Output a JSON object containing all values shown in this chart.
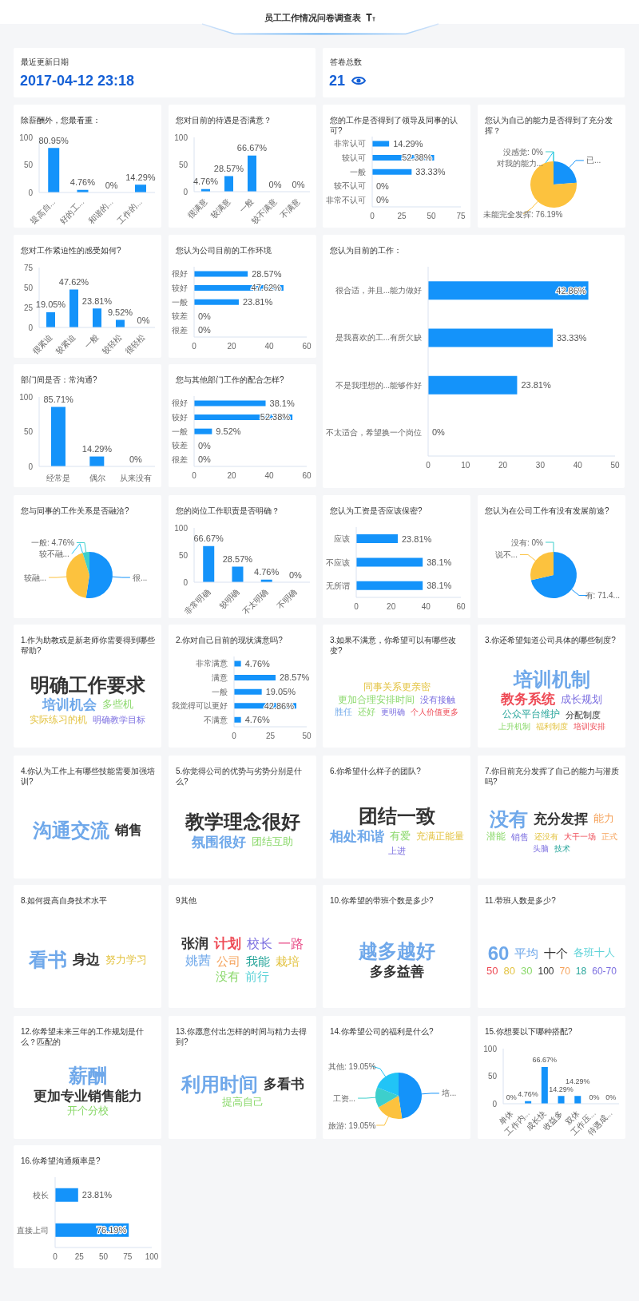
{
  "chart_data": [
    {
      "type": "other",
      "title": "员工工作情况问卷调查表"
    },
    {
      "type": "other",
      "title": "最近更新日期",
      "annotations": [
        "2017-04-12 23:18"
      ]
    },
    {
      "type": "other",
      "title": "答卷总数",
      "annotations": [
        "21"
      ]
    },
    {
      "type": "bar",
      "title": "除薪酬外，您最看重：",
      "categories": [
        "提高自...",
        "好的工...",
        "和谐的...",
        "工作的..."
      ],
      "values": [
        80.95,
        4.76,
        0,
        14.29
      ],
      "value_labels": [
        "80.95%",
        "4.76%",
        "0%",
        "14.29%"
      ],
      "color": "#1493fa",
      "ylim": [
        0,
        100
      ],
      "yticks": [
        0,
        50,
        100
      ]
    },
    {
      "type": "bar",
      "title": "您对目前的待遇是否满意？",
      "categories": [
        "很满意",
        "较满意",
        "一般",
        "较不满意",
        "不满意"
      ],
      "values": [
        4.76,
        28.57,
        66.67,
        0,
        0
      ],
      "value_labels": [
        "4.76%",
        "28.57%",
        "66.67%",
        "0%",
        "0%"
      ],
      "color": "#1493fa",
      "ylim": [
        0,
        100
      ],
      "yticks": [
        0,
        50,
        100
      ]
    },
    {
      "type": "bar",
      "orientation": "horizontal",
      "title": "您的工作是否得到了领导及同事的认可?",
      "categories": [
        "非常认可",
        "较认可",
        "一般",
        "较不认可",
        "非常不认可"
      ],
      "values": [
        14.29,
        52.38,
        33.33,
        0,
        0
      ],
      "value_labels": [
        "14.29%",
        "52.38%",
        "33.33%",
        "0%",
        "0%"
      ],
      "color": "#1493fa",
      "xlim": [
        0,
        75
      ],
      "xticks": [
        0,
        25,
        50,
        75
      ]
    },
    {
      "type": "pie",
      "title": "您认为自己的能力是否得到了充分发挥？",
      "categories": [
        "已...",
        "未能完全发挥",
        "对我的能力...",
        "没感觉"
      ],
      "values": [
        23.81,
        76.19,
        0,
        0
      ],
      "value_labels": [
        null,
        "76.19%",
        null,
        "0%"
      ],
      "colors": [
        "#1493fa",
        "#fcc23e",
        "#21c4f6",
        "#3dcfcc"
      ]
    },
    {
      "type": "bar",
      "title": "您对工作紧迫性的感受如何?",
      "categories": [
        "很紧迫",
        "较紧迫",
        "一般",
        "较轻松",
        "很轻松"
      ],
      "values": [
        19.05,
        47.62,
        23.81,
        9.52,
        0
      ],
      "value_labels": [
        "19.05%",
        "47.62%",
        "23.81%",
        "9.52%",
        "0%"
      ],
      "color": "#1493fa",
      "ylim": [
        0,
        75
      ],
      "yticks": [
        0,
        25,
        50,
        75
      ]
    },
    {
      "type": "bar",
      "orientation": "horizontal",
      "title": "您认为公司目前的工作环境",
      "categories": [
        "很好",
        "较好",
        "一般",
        "较差",
        "很差"
      ],
      "values": [
        28.57,
        47.62,
        23.81,
        0,
        0
      ],
      "value_labels": [
        "28.57%",
        "47.62%",
        "23.81%",
        "0%",
        "0%"
      ],
      "color": "#1493fa",
      "xlim": [
        0,
        60
      ],
      "xticks": [
        0,
        20,
        40,
        60
      ]
    },
    {
      "type": "bar",
      "orientation": "horizontal",
      "title": "您认为目前的工作：",
      "categories": [
        "很合适，并且...能力做好",
        "是我喜欢的工...有所欠缺",
        "不是我理想的...能够作好",
        "不太适合，希望换一个岗位"
      ],
      "values": [
        42.86,
        33.33,
        23.81,
        0
      ],
      "value_labels": [
        "42.86%",
        "33.33%",
        "23.81%",
        "0%"
      ],
      "color": "#1493fa",
      "xlim": [
        0,
        50
      ],
      "xticks": [
        0,
        10,
        20,
        30,
        40,
        50
      ]
    },
    {
      "type": "bar",
      "title": "部门间是否：常沟通?",
      "categories": [
        "经常是",
        "偶尔",
        "从来没有"
      ],
      "values": [
        85.71,
        14.29,
        0
      ],
      "value_labels": [
        "85.71%",
        "14.29%",
        "0%"
      ],
      "color": "#1493fa",
      "ylim": [
        0,
        100
      ],
      "yticks": [
        0,
        50,
        100
      ]
    },
    {
      "type": "bar",
      "orientation": "horizontal",
      "title": "您与其他部门工作的配合怎样?",
      "categories": [
        "很好",
        "较好",
        "一般",
        "较差",
        "很差"
      ],
      "values": [
        38.1,
        52.38,
        9.52,
        0,
        0
      ],
      "value_labels": [
        "38.1%",
        "52.38%",
        "9.52%",
        "0%",
        "0%"
      ],
      "color": "#1493fa",
      "xlim": [
        0,
        60
      ],
      "xticks": [
        0,
        20,
        40,
        60
      ]
    },
    {
      "type": "pie",
      "title": "您与同事的工作关系是否融洽?",
      "categories": [
        "很...",
        "较融...",
        "较不融...",
        "一般"
      ],
      "values": [
        52.38,
        42.86,
        0,
        4.76
      ],
      "value_labels": [
        null,
        null,
        null,
        "4.76%"
      ],
      "colors": [
        "#1493fa",
        "#fcc23e",
        "#21c4f6",
        "#3dcfcc"
      ]
    },
    {
      "type": "bar",
      "title": "您的岗位工作职责是否明确？",
      "categories": [
        "非常明确",
        "较明确",
        "不太明确",
        "不明确"
      ],
      "values": [
        66.67,
        28.57,
        4.76,
        0
      ],
      "value_labels": [
        "66.67%",
        "28.57%",
        "4.76%",
        "0%"
      ],
      "color": "#1493fa",
      "ylim": [
        0,
        100
      ],
      "yticks": [
        0,
        50,
        100
      ]
    },
    {
      "type": "bar",
      "orientation": "horizontal",
      "title": "您认为工资是否应该保密?",
      "categories": [
        "应该",
        "不应该",
        "无所谓"
      ],
      "values": [
        23.81,
        38.1,
        38.1
      ],
      "value_labels": [
        "23.81%",
        "38.1%",
        "38.1%"
      ],
      "color": "#1493fa",
      "xlim": [
        0,
        60
      ],
      "xticks": [
        0,
        20,
        40,
        60
      ]
    },
    {
      "type": "pie",
      "title": "您认为在公司工作有没有发展前途?",
      "categories": [
        "有",
        "说不...",
        "没有"
      ],
      "values": [
        71.43,
        28.57,
        0
      ],
      "value_labels": [
        "71.4...",
        null,
        "0%"
      ],
      "colors": [
        "#1493fa",
        "#fcc23e",
        "#3dcfcc"
      ]
    },
    {
      "type": "other",
      "title": "1.作为助教或是新老师你需要得到哪些帮助?",
      "annotations": [
        "明确工作要求",
        "培训机会",
        "多些机",
        "实际练习的机",
        "明确教学目标"
      ],
      "colors": [
        "#333333",
        "#6fa8ea",
        "#8ad86a",
        "#e3c342",
        "#7c6fe0"
      ]
    },
    {
      "type": "bar",
      "orientation": "horizontal",
      "title": "2.你对自己目前的现状满意吗?",
      "categories": [
        "非常满意",
        "满意",
        "一般",
        "我觉得可以更好",
        "不满意"
      ],
      "values": [
        4.76,
        28.57,
        19.05,
        42.86,
        4.76
      ],
      "value_labels": [
        "4.76%",
        "28.57%",
        "19.05%",
        "42.86%",
        "4.76%"
      ],
      "color": "#1493fa",
      "xlim": [
        0,
        50
      ],
      "xticks": [
        0,
        25,
        50
      ]
    },
    {
      "type": "other",
      "title": "3.如果不满意，你希望可以有哪些改变?",
      "annotations": [
        "同事关系更亲密",
        "更加合理安排时间",
        "没有接触",
        "胜任",
        "还好",
        "更明确",
        "个人价值更多"
      ],
      "colors": [
        "#e3c342",
        "#8ad86a",
        "#7c6fe0",
        "#6fa8ea",
        "#8ad86a",
        "#7c6fe0",
        "#ee4a55"
      ]
    },
    {
      "type": "other",
      "title": "3.你还希望知道公司具体的哪些制度?",
      "annotations": [
        "培训机制",
        "教务系统",
        "成长规划",
        "公众平台维护",
        "分配制度",
        "上升机制",
        "福利制度",
        "培训安排"
      ],
      "colors": [
        "#6fa8ea",
        "#ee4a55",
        "#7c6fe0",
        "#27a59a",
        "#333333",
        "#8ad86a",
        "#e3c342",
        "#ee4a55"
      ]
    },
    {
      "type": "other",
      "title": "4.你认为工作上有哪些技能需要加强培训?",
      "annotations": [
        "沟通交流",
        "销售"
      ],
      "colors": [
        "#6fa8ea",
        "#333333"
      ]
    },
    {
      "type": "other",
      "title": "5.你觉得公司的优势与劣势分别是什么?",
      "annotations": [
        "教学理念很好",
        "氛围很好",
        "团结互助"
      ],
      "colors": [
        "#333333",
        "#6fa8ea",
        "#8ad86a"
      ]
    },
    {
      "type": "other",
      "title": "6.你希望什么样子的团队?",
      "annotations": [
        "团结一致",
        "相处和谐",
        "有爱",
        "充满正能量",
        "上进"
      ],
      "colors": [
        "#333333",
        "#6fa8ea",
        "#8ad86a",
        "#e3c342",
        "#7c6fe0"
      ]
    },
    {
      "type": "other",
      "title": "7.你目前充分发挥了自己的能力与潜质吗?",
      "annotations": [
        "没有",
        "充分发挥",
        "能力",
        "潜能",
        "销售",
        "还没有",
        "大干一场",
        "正式",
        "头脑",
        "技术"
      ],
      "colors": [
        "#6fa8ea",
        "#333333",
        "#f5a25a",
        "#8ad86a",
        "#7c6fe0",
        "#e3c342",
        "#ee4a55",
        "#f5a25a",
        "#7c6fe0",
        "#27a59a"
      ]
    },
    {
      "type": "other",
      "title": "8.如何提高自身技术水平",
      "annotations": [
        "看书",
        "身边",
        "努力学习"
      ],
      "colors": [
        "#6fa8ea",
        "#333333",
        "#e3c342"
      ]
    },
    {
      "type": "other",
      "title": "9其他",
      "annotations": [
        "张润",
        "计划",
        "校长",
        "一路",
        "姚茜",
        "公司",
        "我能",
        "栽培",
        "没有",
        "前行"
      ],
      "colors": [
        "#333333",
        "#ee4a55",
        "#7c6fe0",
        "#e8508a",
        "#6fa8ea",
        "#f5a25a",
        "#27a59a",
        "#e3c342",
        "#8ad86a",
        "#5ed3d8"
      ]
    },
    {
      "type": "other",
      "title": "10.你希望的带班个数是多少?",
      "annotations": [
        "越多越好",
        "多多益善"
      ],
      "colors": [
        "#6fa8ea",
        "#333333"
      ]
    },
    {
      "type": "other",
      "title": "11.带班人数是多少?",
      "annotations": [
        "60",
        "平均",
        "十个",
        "各班十人",
        "50",
        "80",
        "30",
        "100",
        "70",
        "18",
        "60-70"
      ],
      "colors": [
        "#6fa8ea",
        "#6fa8ea",
        "#333333",
        "#5ed3d8",
        "#ee4a55",
        "#e3c342",
        "#8ad86a",
        "#333333",
        "#f5a25a",
        "#27a59a",
        "#7c6fe0"
      ]
    },
    {
      "type": "other",
      "title": "12.你希望未来三年的工作规划是什么？匹配的",
      "annotations": [
        "薪酬",
        "更加专业销售能力",
        "开个分校"
      ],
      "colors": [
        "#6fa8ea",
        "#333333",
        "#8ad86a"
      ]
    },
    {
      "type": "other",
      "title": "13.你愿意付出怎样的时间与精力去得到?",
      "annotations": [
        "利用时间",
        "多看书",
        "提高自己"
      ],
      "colors": [
        "#6fa8ea",
        "#333333",
        "#8ad86a"
      ]
    },
    {
      "type": "pie",
      "title": "14.你希望公司的福利是什么?",
      "categories": [
        "培...",
        "旅游",
        "工资...",
        "其他"
      ],
      "values": [
        47.62,
        19.05,
        14.29,
        19.05
      ],
      "value_labels": [
        null,
        "19.05%",
        null,
        "19.05%"
      ],
      "colors": [
        "#1493fa",
        "#fcc23e",
        "#3dcfcc",
        "#21c4f6"
      ]
    },
    {
      "type": "bar",
      "title": "15.你想要以下哪种搭配?",
      "categories": [
        "单休",
        "工作内...",
        "成长快",
        "收益多",
        "双休",
        "工作压...",
        "待遇成..."
      ],
      "values": [
        0,
        4.76,
        66.67,
        14.29,
        14.29,
        0,
        0
      ],
      "value_labels": [
        "0%",
        "4.76%",
        "66.67%",
        "14.29%",
        "14.29%",
        "0%",
        "0%"
      ],
      "color": "#1493fa",
      "ylim": [
        0,
        100
      ],
      "yticks": [
        0,
        50,
        100
      ]
    },
    {
      "type": "bar",
      "orientation": "horizontal",
      "title": "16.你希望沟通频率是?",
      "categories": [
        "校长",
        "直接上司"
      ],
      "values": [
        23.81,
        76.19
      ],
      "value_labels": [
        "23.81%",
        "76.19%"
      ],
      "color": "#1493fa",
      "xlim": [
        0,
        100
      ],
      "xticks": [
        0,
        25,
        50,
        75,
        100
      ]
    }
  ]
}
